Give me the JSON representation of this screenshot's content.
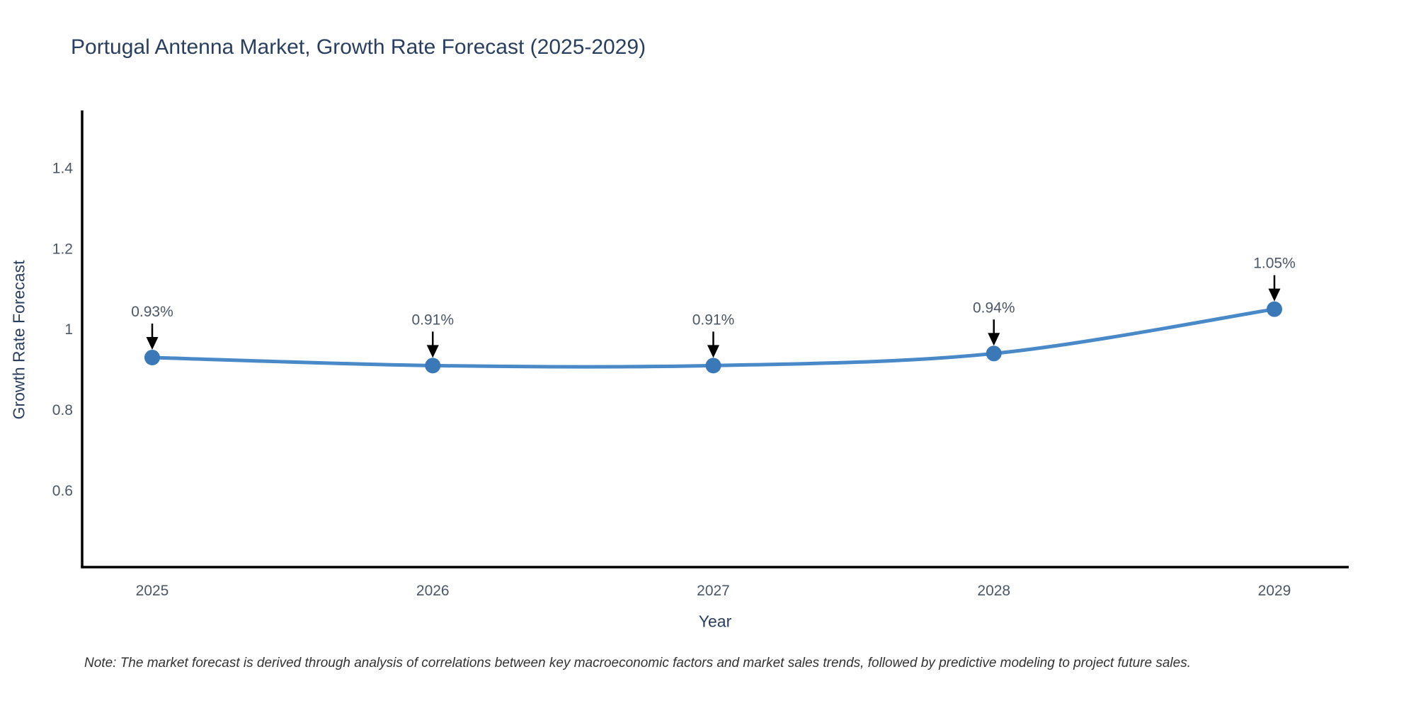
{
  "title": "Portugal Antenna Market, Growth Rate Forecast (2025-2029)",
  "note": "Note: The market forecast is derived through analysis of correlations between key macroeconomic factors and market sales trends, followed by predictive modeling to project future sales.",
  "chart_data": {
    "type": "line",
    "x": [
      "2025",
      "2026",
      "2027",
      "2028",
      "2029"
    ],
    "values": [
      0.93,
      0.91,
      0.91,
      0.94,
      1.05
    ],
    "point_labels": [
      "0.93%",
      "0.91%",
      "0.91%",
      "0.94%",
      "1.05%"
    ],
    "title": "Portugal Antenna Market, Growth Rate Forecast (2025-2029)",
    "xlabel": "Year",
    "ylabel": "Growth Rate Forecast",
    "yticks": [
      1.4,
      1.2,
      1,
      0.8,
      0.6
    ],
    "ytick_labels": [
      "1.4",
      "1.2",
      "1",
      "0.8",
      "0.6"
    ],
    "ylim": [
      0.41,
      1.543
    ],
    "grid": false,
    "legend": "none",
    "line_shape": "spline",
    "colors": {
      "line": "#4a89c8",
      "marker": "#3a78b8",
      "axis": "#000000",
      "arrow": "#000000",
      "tick_text": "#4c5765",
      "annotation_text": "#4c5765",
      "title_text": "#2a3f5f"
    }
  }
}
